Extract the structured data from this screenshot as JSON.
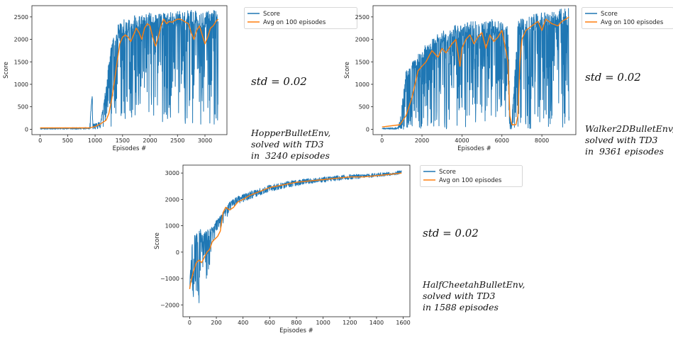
{
  "chart_data": [
    {
      "type": "line",
      "title": "",
      "xlabel": "Episodes #",
      "ylabel": "Score",
      "xlim": [
        -150,
        3400
      ],
      "ylim": [
        -120,
        2750
      ],
      "xticks": [
        0,
        500,
        1000,
        1500,
        2000,
        2500,
        3000
      ],
      "yticks": [
        0,
        500,
        1000,
        1500,
        2000,
        2500
      ],
      "legend_position": "outside-top-right",
      "series": [
        {
          "name": "Score",
          "color": "#1f77b4",
          "noisy": true,
          "x": [
            0,
            900,
            950,
            960,
            1000,
            1100,
            1150,
            1200,
            1250,
            1300,
            1400,
            1500,
            1600,
            1700,
            1800,
            1900,
            2000,
            2100,
            2200,
            2300,
            2400,
            2500,
            2600,
            2700,
            2800,
            2900,
            3000,
            3100,
            3200,
            3240
          ],
          "hi": [
            30,
            40,
            900,
            150,
            120,
            200,
            500,
            1000,
            1500,
            1900,
            2300,
            2450,
            2500,
            2550,
            2550,
            2600,
            2600,
            2550,
            2600,
            2600,
            2600,
            2650,
            2600,
            2650,
            2650,
            2600,
            2600,
            2650,
            2700,
            2700
          ],
          "lo": [
            0,
            0,
            0,
            0,
            0,
            20,
            50,
            50,
            50,
            50,
            100,
            150,
            100,
            200,
            100,
            150,
            200,
            200,
            150,
            100,
            100,
            100,
            150,
            100,
            100,
            100,
            100,
            100,
            100,
            100
          ]
        },
        {
          "name": "Avg on 100 episodes",
          "color": "#ff7f0e",
          "x": [
            0,
            900,
            1000,
            1100,
            1200,
            1250,
            1300,
            1350,
            1400,
            1450,
            1500,
            1550,
            1600,
            1650,
            1700,
            1750,
            1800,
            1850,
            1900,
            1950,
            2000,
            2050,
            2100,
            2150,
            2200,
            2250,
            2300,
            2350,
            2400,
            2450,
            2500,
            2550,
            2600,
            2650,
            2700,
            2750,
            2800,
            2850,
            2900,
            2950,
            3000,
            3050,
            3100,
            3150,
            3200,
            3240
          ],
          "y": [
            30,
            30,
            60,
            120,
            200,
            350,
            650,
            1050,
            1500,
            1900,
            2050,
            2100,
            2050,
            1950,
            2100,
            2250,
            2150,
            2000,
            2250,
            2350,
            2300,
            2050,
            1850,
            2050,
            2300,
            2450,
            2350,
            2400,
            2380,
            2420,
            2450,
            2450,
            2420,
            2380,
            2350,
            2150,
            2000,
            2200,
            2300,
            2100,
            1900,
            2050,
            2250,
            2300,
            2400,
            2450
          ]
        }
      ]
    },
    {
      "type": "line",
      "title": "",
      "xlabel": "Episodes #",
      "ylabel": "Score",
      "xlim": [
        -450,
        9700
      ],
      "ylim": [
        -120,
        2750
      ],
      "xticks": [
        0,
        2000,
        4000,
        6000,
        8000
      ],
      "yticks": [
        0,
        500,
        1000,
        1500,
        2000,
        2500
      ],
      "legend_position": "outside-top-right",
      "series": [
        {
          "name": "Score",
          "color": "#1f77b4",
          "noisy": true,
          "x": [
            0,
            800,
            900,
            1000,
            1200,
            1500,
            2000,
            2500,
            3000,
            3500,
            4000,
            4500,
            5000,
            5500,
            6000,
            6300,
            6350,
            6400,
            6500,
            6800,
            7000,
            7500,
            8000,
            8500,
            9000,
            9361
          ],
          "hi": [
            30,
            40,
            200,
            600,
            1300,
            1500,
            1800,
            2000,
            2200,
            2300,
            2350,
            2400,
            2400,
            2450,
            2400,
            2400,
            1500,
            200,
            200,
            2400,
            2500,
            2550,
            2600,
            2650,
            2700,
            2700
          ],
          "lo": [
            0,
            0,
            0,
            0,
            0,
            0,
            0,
            0,
            0,
            0,
            0,
            0,
            0,
            0,
            0,
            0,
            0,
            0,
            0,
            0,
            0,
            0,
            0,
            0,
            0,
            0
          ]
        },
        {
          "name": "Avg on 100 episodes",
          "color": "#ff7f0e",
          "x": [
            0,
            900,
            1200,
            1500,
            1700,
            1800,
            2000,
            2200,
            2500,
            2800,
            3000,
            3200,
            3500,
            3700,
            3900,
            4000,
            4200,
            4400,
            4600,
            4800,
            5000,
            5200,
            5400,
            5600,
            5800,
            6000,
            6200,
            6300,
            6400,
            6500,
            6600,
            6700,
            6800,
            6900,
            7000,
            7200,
            7500,
            7800,
            8000,
            8200,
            8500,
            8800,
            9000,
            9200,
            9361
          ],
          "y": [
            50,
            100,
            300,
            700,
            1100,
            1300,
            1400,
            1500,
            1750,
            1600,
            1800,
            1700,
            1900,
            2000,
            1400,
            1800,
            2000,
            2100,
            1900,
            2050,
            2150,
            1800,
            2100,
            1950,
            2050,
            2200,
            1750,
            1500,
            300,
            100,
            100,
            100,
            300,
            1500,
            2000,
            2200,
            2300,
            2400,
            2200,
            2450,
            2350,
            2300,
            2400,
            2450,
            2500
          ]
        }
      ]
    },
    {
      "type": "line",
      "title": "",
      "xlabel": "Episodes #",
      "ylabel": "Score",
      "xlim": [
        -50,
        1650
      ],
      "ylim": [
        -2450,
        3300
      ],
      "xticks": [
        0,
        200,
        400,
        600,
        800,
        1000,
        1200,
        1400,
        1600
      ],
      "yticks": [
        -2000,
        -1000,
        0,
        1000,
        2000,
        3000
      ],
      "legend_position": "outside-top-right",
      "series": [
        {
          "name": "Score",
          "color": "#1f77b4",
          "noisy": true,
          "x": [
            0,
            20,
            40,
            60,
            80,
            100,
            120,
            150,
            180,
            200,
            250,
            300,
            350,
            400,
            500,
            600,
            700,
            800,
            900,
            1000,
            1100,
            1200,
            1300,
            1400,
            1500,
            1588
          ],
          "hi": [
            -1200,
            400,
            800,
            700,
            900,
            700,
            800,
            900,
            1000,
            1200,
            1500,
            1900,
            2100,
            2200,
            2400,
            2550,
            2650,
            2750,
            2800,
            2850,
            2900,
            2950,
            2950,
            3000,
            3050,
            3100
          ],
          "lo": [
            -1400,
            -1800,
            -1600,
            -1900,
            -2300,
            -1500,
            -1200,
            -500,
            400,
            700,
            1000,
            1500,
            1800,
            1900,
            2100,
            2300,
            2400,
            2500,
            2600,
            2650,
            2700,
            2750,
            2800,
            2850,
            2900,
            2950
          ]
        },
        {
          "name": "Avg on 100 episodes",
          "color": "#ff7f0e",
          "x": [
            0,
            10,
            30,
            50,
            70,
            90,
            110,
            130,
            150,
            170,
            190,
            210,
            230,
            250,
            270,
            300,
            330,
            360,
            400,
            450,
            500,
            600,
            700,
            800,
            900,
            1000,
            1100,
            1200,
            1300,
            1400,
            1500,
            1588
          ],
          "y": [
            -1400,
            -1100,
            -700,
            -400,
            -300,
            -400,
            -200,
            0,
            100,
            400,
            500,
            600,
            800,
            1500,
            1700,
            1600,
            1700,
            1900,
            2000,
            2150,
            2250,
            2450,
            2550,
            2650,
            2700,
            2750,
            2800,
            2850,
            2850,
            2900,
            2950,
            3000
          ]
        }
      ]
    }
  ],
  "notes": [
    {
      "std": "std = 0.02",
      "desc": "HopperBulletEnv,\nsolved with TD3\nin  3240 episodes"
    },
    {
      "std": "std = 0.02",
      "desc": "Walker2DBulletEnv,\nsolved with TD3\nin  9361 episodes"
    },
    {
      "std": "std = 0.02",
      "desc": "HalfCheetahBulletEnv,\nsolved with TD3\nin 1588 episodes"
    }
  ]
}
